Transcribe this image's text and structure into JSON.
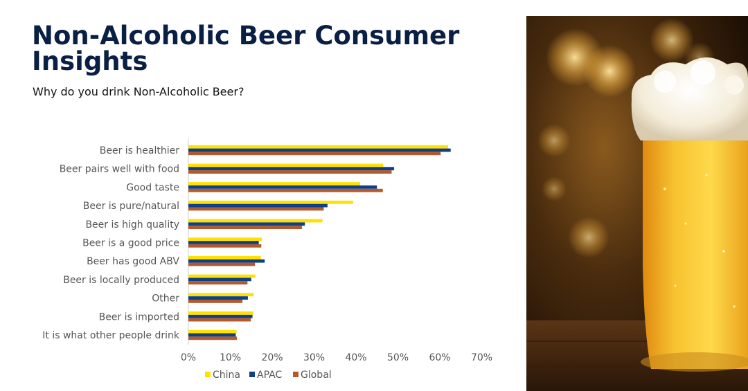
{
  "header": {
    "title": "Non-Alcoholic Beer Consumer Insights",
    "subtitle": "Why do you drink Non-Alcoholic Beer?"
  },
  "colors": {
    "china": "#ffe100",
    "apac": "#0d3f8a",
    "global": "#b25a2c",
    "axis": "#cccccc",
    "text": "#555555"
  },
  "image": {
    "subject": "glass-of-beer-photo"
  },
  "chart_data": {
    "type": "bar",
    "orientation": "horizontal",
    "categories": [
      "Beer is healthier",
      "Beer pairs well with food",
      "Good taste",
      "Beer is pure/natural",
      "Beer is high quality",
      "Beer is a good price",
      "Beer has good ABV",
      "Beer is locally produced",
      "Other",
      "Beer is imported",
      "It is what other people drink"
    ],
    "series": [
      {
        "name": "China",
        "color": "#ffe100",
        "values": [
          62,
          46.5,
          41,
          39.3,
          32,
          17.5,
          17.3,
          16,
          15.6,
          15.5,
          11.5
        ]
      },
      {
        "name": "APAC",
        "color": "#0d3f8a",
        "values": [
          62.6,
          49.1,
          45,
          33.2,
          27.8,
          16.8,
          18.2,
          15,
          14.2,
          15.3,
          11.3
        ]
      },
      {
        "name": "Global",
        "color": "#b25a2c",
        "values": [
          60.2,
          48.5,
          46.4,
          32.3,
          27.1,
          17.4,
          15.9,
          14.1,
          12.9,
          14.9,
          11.6
        ]
      }
    ],
    "xlim": [
      0,
      70
    ],
    "xticks": [
      "0%",
      "10%",
      "20%",
      "30%",
      "40%",
      "50%",
      "60%",
      "70%"
    ],
    "legend": {
      "position": "bottom"
    },
    "grid": false
  }
}
